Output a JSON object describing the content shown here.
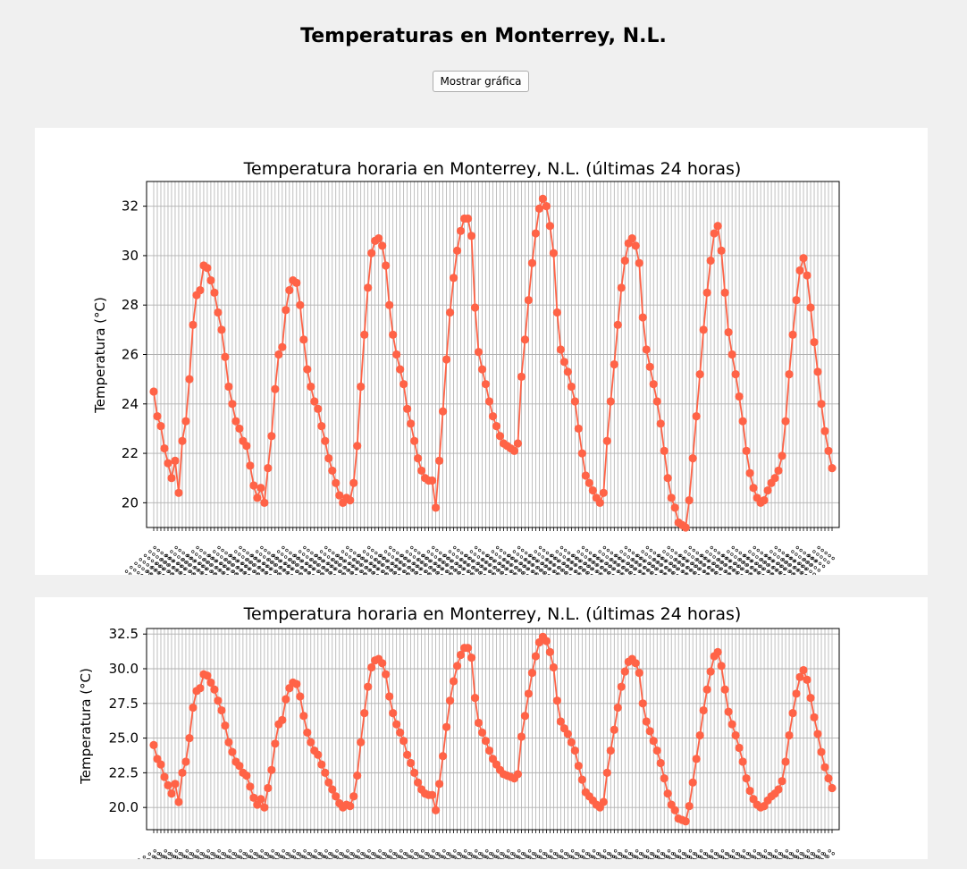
{
  "window": {
    "heading": "Temperaturas en Monterrey, N.L."
  },
  "controls": {
    "show_chart_label": "Mostrar gráfica"
  },
  "colors": {
    "line": "#ff6347",
    "grid": "#b0b0b0",
    "background": "#f0f0f0"
  },
  "chart_data": [
    {
      "type": "line",
      "title": "Temperatura horaria en Monterrey, N.L. (últimas 24 horas)",
      "xlabel": "",
      "ylabel": "Temperatura (°C)",
      "ylim": [
        19,
        33
      ],
      "yticks": [
        20,
        22,
        24,
        26,
        28,
        30,
        32
      ],
      "ytick_labels": [
        "20",
        "22",
        "24",
        "26",
        "28",
        "30",
        "32"
      ],
      "grid": true,
      "x_tick_labels_legible": false,
      "series": [
        {
          "values": [
            24.5,
            23.5,
            23.1,
            22.2,
            21.6,
            21.0,
            21.7,
            20.4,
            22.5,
            23.3,
            25.0,
            27.2,
            28.4,
            28.6,
            29.6,
            29.5,
            29.0,
            28.5,
            27.7,
            27.0,
            25.9,
            24.7,
            24.0,
            23.3,
            23.0,
            22.5,
            22.3,
            21.5,
            20.7,
            20.2,
            20.6,
            20.0,
            21.4,
            22.7,
            24.6,
            26.0,
            26.3,
            27.8,
            28.6,
            29.0,
            28.9,
            28.0,
            26.6,
            25.4,
            24.7,
            24.1,
            23.8,
            23.1,
            22.5,
            21.8,
            21.3,
            20.8,
            20.3,
            20.0,
            20.2,
            20.1,
            20.8,
            22.3,
            24.7,
            26.8,
            28.7,
            30.1,
            30.6,
            30.7,
            30.4,
            29.6,
            28.0,
            26.8,
            26.0,
            25.4,
            24.8,
            23.8,
            23.2,
            22.5,
            21.8,
            21.3,
            21.0,
            20.9,
            20.9,
            19.8,
            21.7,
            23.7,
            25.8,
            27.7,
            29.1,
            30.2,
            31.0,
            31.5,
            31.5,
            30.8,
            27.9,
            26.1,
            25.4,
            24.8,
            24.1,
            23.5,
            23.1,
            22.7,
            22.4,
            22.3,
            22.2,
            22.1,
            22.4,
            25.1,
            26.6,
            28.2,
            29.7,
            30.9,
            31.9,
            32.3,
            32.0,
            31.2,
            30.1,
            27.7,
            26.2,
            25.7,
            25.3,
            24.7,
            24.1,
            23.0,
            22.0,
            21.1,
            20.8,
            20.5,
            20.2,
            20.0,
            20.4,
            22.5,
            24.1,
            25.6,
            27.2,
            28.7,
            29.8,
            30.5,
            30.7,
            30.4,
            29.7,
            27.5,
            26.2,
            25.5,
            24.8,
            24.1,
            23.2,
            22.1,
            21.0,
            20.2,
            19.8,
            19.2,
            19.1,
            19.0,
            20.1,
            21.8,
            23.5,
            25.2,
            27.0,
            28.5,
            29.8,
            30.9,
            31.2,
            30.2,
            28.5,
            26.9,
            26.0,
            25.2,
            24.3,
            23.3,
            22.1,
            21.2,
            20.6,
            20.2,
            20.0,
            20.1,
            20.5,
            20.8,
            21.0,
            21.3,
            21.9,
            23.3,
            25.2,
            26.8,
            28.2,
            29.4,
            29.9,
            29.2,
            27.9,
            26.5,
            25.3,
            24.0,
            22.9,
            22.1,
            21.4
          ]
        }
      ]
    },
    {
      "type": "line",
      "title": "Temperatura horaria en Monterrey, N.L. (últimas 24 horas)",
      "xlabel": "",
      "ylabel": "Temperatura (°C)",
      "ylim": [
        18.4,
        32.9
      ],
      "yticks": [
        20.0,
        22.5,
        25.0,
        27.5,
        30.0,
        32.5
      ],
      "ytick_labels": [
        "20.0",
        "22.5",
        "25.0",
        "27.5",
        "30.0",
        "32.5"
      ],
      "grid": true,
      "x_tick_labels_legible": false,
      "series": [
        {
          "values": [
            24.5,
            23.5,
            23.1,
            22.2,
            21.6,
            21.0,
            21.7,
            20.4,
            22.5,
            23.3,
            25.0,
            27.2,
            28.4,
            28.6,
            29.6,
            29.5,
            29.0,
            28.5,
            27.7,
            27.0,
            25.9,
            24.7,
            24.0,
            23.3,
            23.0,
            22.5,
            22.3,
            21.5,
            20.7,
            20.2,
            20.6,
            20.0,
            21.4,
            22.7,
            24.6,
            26.0,
            26.3,
            27.8,
            28.6,
            29.0,
            28.9,
            28.0,
            26.6,
            25.4,
            24.7,
            24.1,
            23.8,
            23.1,
            22.5,
            21.8,
            21.3,
            20.8,
            20.3,
            20.0,
            20.2,
            20.1,
            20.8,
            22.3,
            24.7,
            26.8,
            28.7,
            30.1,
            30.6,
            30.7,
            30.4,
            29.6,
            28.0,
            26.8,
            26.0,
            25.4,
            24.8,
            23.8,
            23.2,
            22.5,
            21.8,
            21.3,
            21.0,
            20.9,
            20.9,
            19.8,
            21.7,
            23.7,
            25.8,
            27.7,
            29.1,
            30.2,
            31.0,
            31.5,
            31.5,
            30.8,
            27.9,
            26.1,
            25.4,
            24.8,
            24.1,
            23.5,
            23.1,
            22.7,
            22.4,
            22.3,
            22.2,
            22.1,
            22.4,
            25.1,
            26.6,
            28.2,
            29.7,
            30.9,
            31.9,
            32.3,
            32.0,
            31.2,
            30.1,
            27.7,
            26.2,
            25.7,
            25.3,
            24.7,
            24.1,
            23.0,
            22.0,
            21.1,
            20.8,
            20.5,
            20.2,
            20.0,
            20.4,
            22.5,
            24.1,
            25.6,
            27.2,
            28.7,
            29.8,
            30.5,
            30.7,
            30.4,
            29.7,
            27.5,
            26.2,
            25.5,
            24.8,
            24.1,
            23.2,
            22.1,
            21.0,
            20.2,
            19.8,
            19.2,
            19.1,
            19.0,
            20.1,
            21.8,
            23.5,
            25.2,
            27.0,
            28.5,
            29.8,
            30.9,
            31.2,
            30.2,
            28.5,
            26.9,
            26.0,
            25.2,
            24.3,
            23.3,
            22.1,
            21.2,
            20.6,
            20.2,
            20.0,
            20.1,
            20.5,
            20.8,
            21.0,
            21.3,
            21.9,
            23.3,
            25.2,
            26.8,
            28.2,
            29.4,
            29.9,
            29.2,
            27.9,
            26.5,
            25.3,
            24.0,
            22.9,
            22.1,
            21.4
          ]
        }
      ]
    }
  ]
}
